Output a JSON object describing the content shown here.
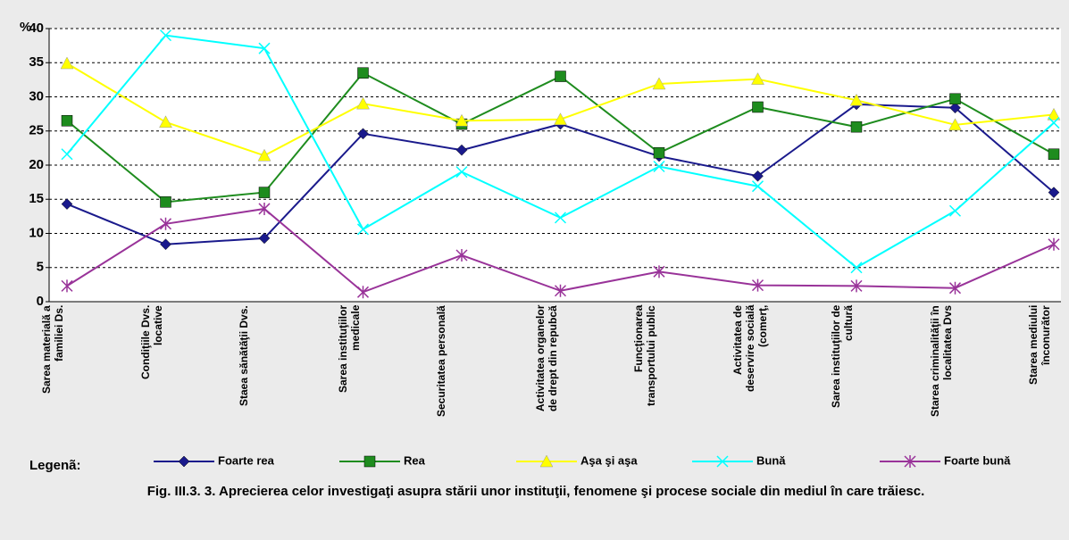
{
  "chart_data": {
    "type": "line",
    "y_label": "%",
    "categories": [
      "Sarea materială a familiei Ds.",
      "Condiţiile Dvs. locative",
      "Staea sănătăţii Dvs.",
      "Sarea instituţiilor medicale",
      "Securitatea personală",
      "Activitatea organelor de drept din repubcă",
      "Funcţionarea transportului public",
      "Activitatea de deservire socială (comerţ,",
      "Sarea instituţiilor de cultură",
      "Starea criminalităţii în localitatea Dvs",
      "Starea mediului înconurător"
    ],
    "series": [
      {
        "name": "Foarte rea",
        "color": "#1a1a8c",
        "marker": "diamond",
        "values": [
          14.3,
          8.4,
          9.3,
          24.6,
          22.2,
          26.0,
          21.3,
          18.4,
          28.9,
          28.4,
          16.0
        ]
      },
      {
        "name": "Rea",
        "color": "#1e8c1e",
        "marker": "square",
        "values": [
          26.5,
          14.6,
          16.0,
          33.5,
          26.0,
          33.0,
          21.8,
          28.5,
          25.6,
          29.7,
          21.6
        ]
      },
      {
        "name": "Aşa şi aşa",
        "color": "#ffff00",
        "marker": "triangle",
        "values": [
          34.9,
          26.3,
          21.4,
          29.0,
          26.5,
          26.7,
          31.9,
          32.6,
          29.5,
          25.9,
          27.4
        ]
      },
      {
        "name": "Bună",
        "color": "#00ffff",
        "marker": "x",
        "values": [
          21.6,
          39.0,
          37.1,
          10.6,
          19.0,
          12.3,
          19.8,
          16.9,
          5.0,
          13.3,
          26.2
        ]
      },
      {
        "name": "Foarte bună",
        "color": "#993399",
        "marker": "star",
        "values": [
          2.3,
          11.4,
          13.6,
          1.4,
          6.8,
          1.6,
          4.4,
          2.4,
          2.3,
          2.0,
          8.4
        ]
      }
    ],
    "ylim": [
      0,
      40
    ],
    "yticks": [
      0,
      5,
      10,
      15,
      20,
      25,
      30,
      35,
      40
    ],
    "grid": true,
    "legend_title": "Legenã:",
    "caption": "Fig. III.3. 3. Aprecierea celor investigaţi asupra stării unor instituţii, fenomene şi procese sociale din mediul în care trăiesc."
  }
}
